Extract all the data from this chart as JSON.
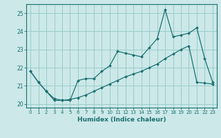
{
  "xlabel": "Humidex (Indice chaleur)",
  "background_color": "#cce8e8",
  "line_color": "#1a7070",
  "grid_color": "#99cccc",
  "xlim": [
    -0.5,
    23.5
  ],
  "ylim": [
    19.8,
    25.5
  ],
  "xticks": [
    0,
    1,
    2,
    3,
    4,
    5,
    6,
    7,
    8,
    9,
    10,
    11,
    12,
    13,
    14,
    15,
    16,
    17,
    18,
    19,
    20,
    21,
    22,
    23
  ],
  "yticks": [
    20,
    21,
    22,
    23,
    24,
    25
  ],
  "line1_x": [
    0,
    1,
    2,
    3,
    4,
    5,
    6,
    7,
    8,
    9,
    10,
    11,
    12,
    13,
    14,
    15,
    16,
    17,
    18,
    19,
    20,
    21,
    22,
    23
  ],
  "line1_y": [
    21.8,
    21.2,
    20.7,
    20.2,
    20.2,
    20.2,
    21.3,
    21.4,
    21.4,
    21.8,
    22.1,
    22.9,
    22.8,
    22.7,
    22.6,
    23.1,
    23.6,
    25.2,
    23.7,
    23.8,
    23.9,
    24.2,
    22.5,
    21.2
  ],
  "line2_x": [
    0,
    1,
    2,
    3,
    4,
    5,
    6,
    7,
    8,
    9,
    10,
    11,
    12,
    13,
    14,
    15,
    16,
    17,
    18,
    19,
    20,
    21,
    22,
    23
  ],
  "line2_y": [
    21.8,
    21.2,
    20.7,
    20.3,
    20.2,
    20.25,
    20.35,
    20.5,
    20.7,
    20.9,
    21.1,
    21.3,
    21.5,
    21.65,
    21.8,
    22.0,
    22.2,
    22.5,
    22.75,
    23.0,
    23.2,
    21.2,
    21.15,
    21.1
  ]
}
